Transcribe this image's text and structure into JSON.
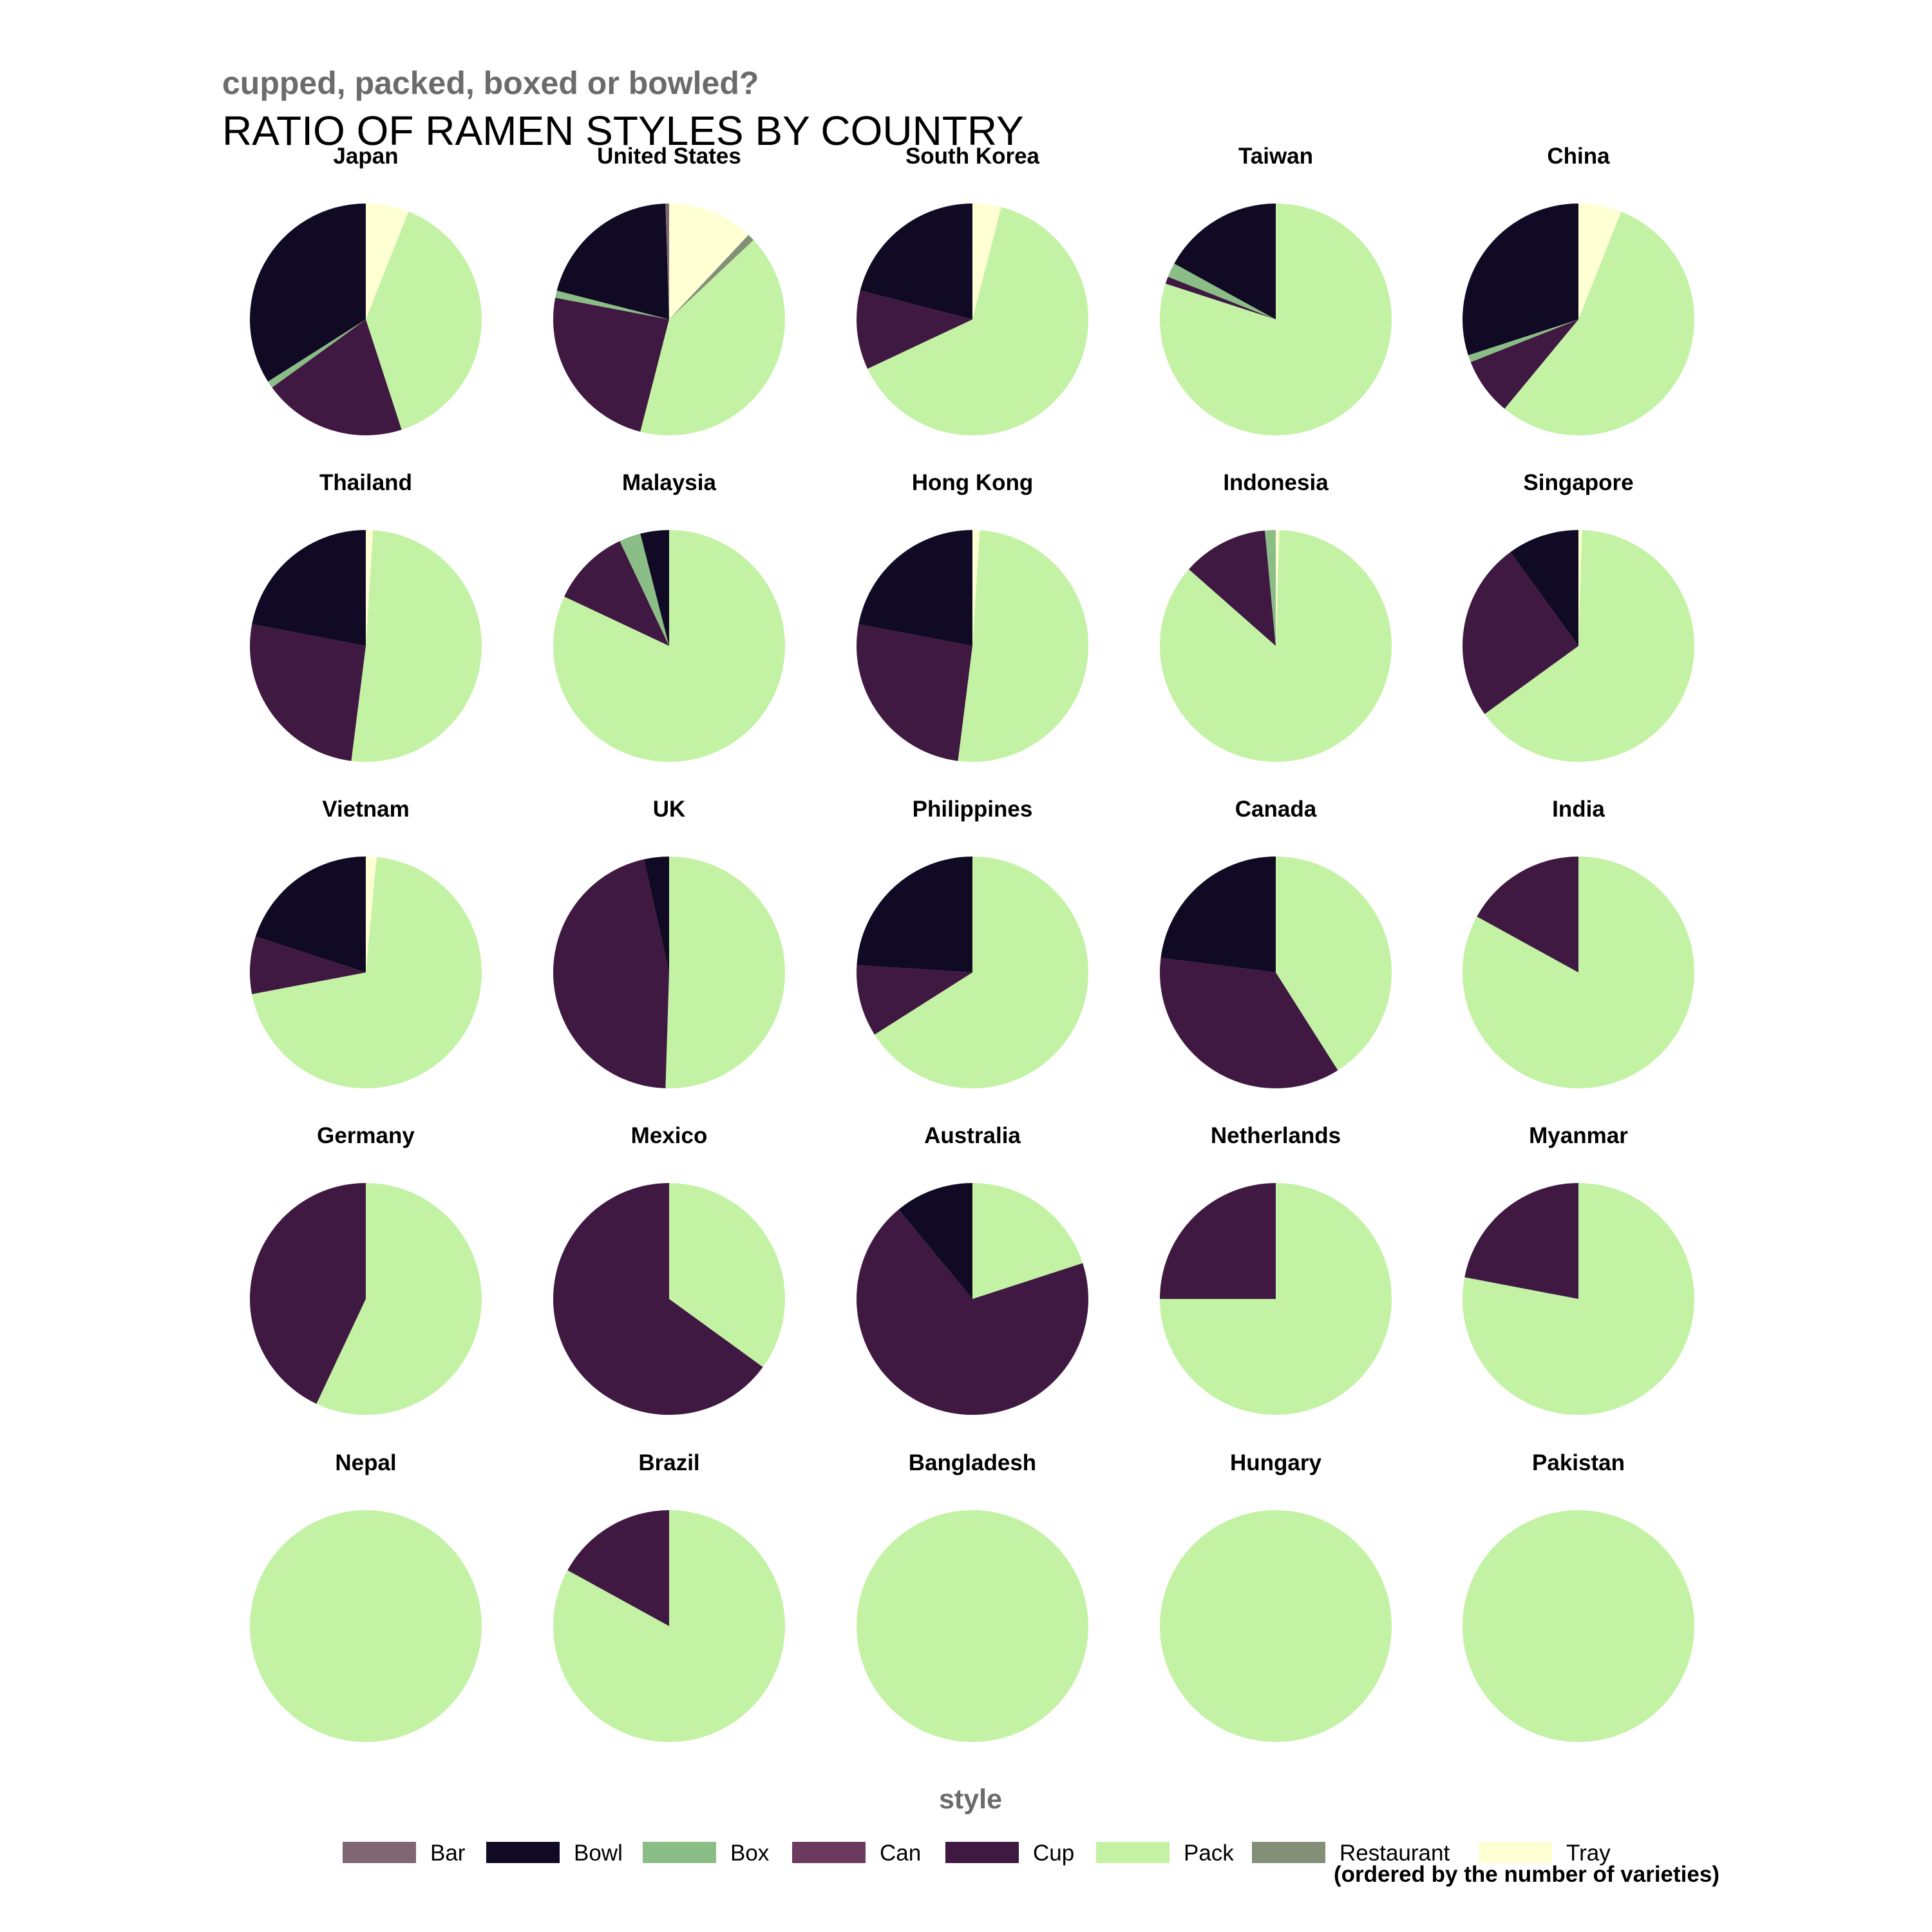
{
  "chart_data": {
    "type": "pie",
    "subtitle": "cupped, packed, boxed or bowled?",
    "title": "RATIO OF RAMEN STYLES BY COUNTRY",
    "legend_title": "style",
    "legend_placement": "bottom",
    "caption": "(ordered by the number of varieties)",
    "styles": [
      "Bar",
      "Bowl",
      "Box",
      "Can",
      "Cup",
      "Pack",
      "Restaurant",
      "Tray"
    ],
    "colors": {
      "Bar": "#7f6672",
      "Bowl": "#110a24",
      "Box": "#8bbd86",
      "Can": "#6c3a5e",
      "Cup": "#401942",
      "Pack": "#c3f2a5",
      "Restaurant": "#838f77",
      "Tray": "#ffffd4"
    },
    "segment_order": [
      "Tray",
      "Restaurant",
      "Pack",
      "Cup",
      "Can",
      "Box",
      "Bowl",
      "Bar"
    ],
    "facets": [
      {
        "country": "Japan",
        "shares": {
          "Tray": 6,
          "Pack": 39,
          "Cup": 20,
          "Box": 1,
          "Bowl": 34
        }
      },
      {
        "country": "United States",
        "shares": {
          "Tray": 12,
          "Restaurant": 1,
          "Pack": 41,
          "Cup": 24,
          "Box": 1,
          "Bowl": 20.5,
          "Bar": 0.5
        }
      },
      {
        "country": "South Korea",
        "shares": {
          "Tray": 4,
          "Pack": 64,
          "Cup": 11,
          "Bowl": 21
        }
      },
      {
        "country": "Taiwan",
        "shares": {
          "Pack": 80,
          "Cup": 1,
          "Box": 2,
          "Bowl": 17
        }
      },
      {
        "country": "China",
        "shares": {
          "Tray": 6,
          "Pack": 55,
          "Cup": 8,
          "Box": 1,
          "Bowl": 30
        }
      },
      {
        "country": "Thailand",
        "shares": {
          "Tray": 1,
          "Pack": 51,
          "Cup": 26,
          "Bowl": 22
        }
      },
      {
        "country": "Malaysia",
        "shares": {
          "Pack": 82,
          "Cup": 11,
          "Box": 3,
          "Bowl": 4
        }
      },
      {
        "country": "Hong Kong",
        "shares": {
          "Tray": 1,
          "Pack": 51,
          "Cup": 26,
          "Bowl": 22
        }
      },
      {
        "country": "Indonesia",
        "shares": {
          "Tray": 0.5,
          "Pack": 86,
          "Cup": 12,
          "Box": 1.5
        }
      },
      {
        "country": "Singapore",
        "shares": {
          "Tray": 0.5,
          "Pack": 64.5,
          "Cup": 25,
          "Bowl": 10
        }
      },
      {
        "country": "Vietnam",
        "shares": {
          "Tray": 1.5,
          "Pack": 70.5,
          "Cup": 8,
          "Bowl": 20
        }
      },
      {
        "country": "UK",
        "shares": {
          "Pack": 50.5,
          "Cup": 46,
          "Bowl": 3.5
        }
      },
      {
        "country": "Philippines",
        "shares": {
          "Pack": 66,
          "Cup": 10,
          "Bowl": 24
        }
      },
      {
        "country": "Canada",
        "shares": {
          "Pack": 41,
          "Cup": 36,
          "Bowl": 23
        }
      },
      {
        "country": "India",
        "shares": {
          "Pack": 83,
          "Cup": 17
        }
      },
      {
        "country": "Germany",
        "shares": {
          "Pack": 57,
          "Cup": 43
        }
      },
      {
        "country": "Mexico",
        "shares": {
          "Pack": 35,
          "Cup": 65
        }
      },
      {
        "country": "Australia",
        "shares": {
          "Pack": 20,
          "Cup": 69,
          "Bowl": 11
        }
      },
      {
        "country": "Netherlands",
        "shares": {
          "Pack": 75,
          "Cup": 25
        }
      },
      {
        "country": "Myanmar",
        "shares": {
          "Pack": 78,
          "Cup": 22
        }
      },
      {
        "country": "Nepal",
        "shares": {
          "Pack": 100
        }
      },
      {
        "country": "Brazil",
        "shares": {
          "Pack": 83,
          "Cup": 17
        }
      },
      {
        "country": "Bangladesh",
        "shares": {
          "Pack": 100
        }
      },
      {
        "country": "Hungary",
        "shares": {
          "Pack": 100
        }
      },
      {
        "country": "Pakistan",
        "shares": {
          "Pack": 100
        }
      }
    ]
  }
}
